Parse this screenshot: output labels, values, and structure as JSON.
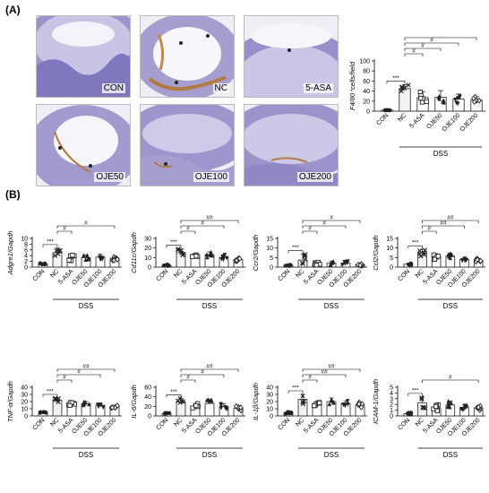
{
  "panels": {
    "a": "(A)",
    "b": "(B)"
  },
  "micrographs": [
    {
      "label": "CON"
    },
    {
      "label": "NC"
    },
    {
      "label": "5-ASA"
    },
    {
      "label": "OJE50"
    },
    {
      "label": "OJE100"
    },
    {
      "label": "OJE200"
    }
  ],
  "colors": {
    "bar_fill": "#ffffff",
    "bar_edge": "#222222",
    "point": "#222222",
    "tissue_purple": "#8e86c4",
    "stain_brown": "#b27a3e"
  },
  "chart_data": [
    {
      "type": "bar",
      "ylabel": "F4/80⁺cells/field",
      "yticks": [
        "0",
        "20",
        "40",
        "60",
        "80",
        "100"
      ],
      "ylim": [
        0,
        100
      ],
      "categories": [
        "CON",
        "NC",
        "5-ASA",
        "OJE50",
        "OJE100",
        "OJE200"
      ],
      "values": [
        2,
        45,
        27,
        28,
        24,
        22
      ],
      "errors": [
        1,
        8,
        12,
        13,
        10,
        7
      ],
      "group_label": "DSS",
      "significance": [
        {
          "from": 0,
          "to": 1,
          "label": "***"
        },
        {
          "from": 1,
          "to": 2,
          "label": "#"
        },
        {
          "from": 1,
          "to": 3,
          "label": "#"
        },
        {
          "from": 1,
          "to": 4,
          "label": "#"
        },
        {
          "from": 1,
          "to": 5,
          "label": "##"
        }
      ]
    },
    {
      "type": "bar",
      "ylabel": "Adgre1/Gapdh",
      "yticks": [
        "0",
        "2",
        "4",
        "6",
        "8",
        "10"
      ],
      "ylim": [
        0,
        10
      ],
      "categories": [
        "CON",
        "NC",
        "5-ASA",
        "OJE50",
        "OJE100",
        "OJE200"
      ],
      "values": [
        1.1,
        5.0,
        3.2,
        3.3,
        3.5,
        3.1
      ],
      "errors": [
        0.4,
        1.6,
        1.0,
        0.9,
        1.0,
        0.8
      ],
      "group_label": "DSS",
      "significance": [
        {
          "from": 0,
          "to": 1,
          "label": "***"
        },
        {
          "from": 1,
          "to": 2,
          "label": "#"
        },
        {
          "from": 1,
          "to": 5,
          "label": "#"
        }
      ]
    },
    {
      "type": "bar",
      "ylabel": "Cd11c/Gapdh",
      "yticks": [
        "0",
        "10",
        "20",
        "30"
      ],
      "ylim": [
        0,
        30
      ],
      "categories": [
        "CON",
        "NC",
        "5-ASA",
        "OJE50",
        "OJE100",
        "OJE200"
      ],
      "values": [
        2,
        15,
        11,
        13,
        10,
        8
      ],
      "errors": [
        0.8,
        4,
        3,
        3,
        3,
        2
      ],
      "group_label": "DSS",
      "significance": [
        {
          "from": 0,
          "to": 1,
          "label": "***"
        },
        {
          "from": 1,
          "to": 2,
          "label": "#"
        },
        {
          "from": 1,
          "to": 4,
          "label": "#"
        },
        {
          "from": 1,
          "to": 5,
          "label": "##"
        }
      ]
    },
    {
      "type": "bar",
      "ylabel": "Ccr2/Gapdh",
      "yticks": [
        "0",
        "5",
        "10",
        "15"
      ],
      "ylim": [
        0,
        15
      ],
      "categories": [
        "CON",
        "NC",
        "5-ASA",
        "OJE50",
        "OJE100",
        "OJE200"
      ],
      "values": [
        1,
        3.7,
        1.8,
        2.0,
        2.0,
        1.4
      ],
      "errors": [
        0.4,
        3.0,
        0.8,
        1.0,
        1.0,
        0.8
      ],
      "group_label": "DSS",
      "significance": [
        {
          "from": 0,
          "to": 1,
          "label": "***"
        },
        {
          "from": 1,
          "to": 2,
          "label": "#"
        },
        {
          "from": 1,
          "to": 4,
          "label": "#"
        },
        {
          "from": 1,
          "to": 5,
          "label": "#"
        }
      ]
    },
    {
      "type": "bar",
      "ylabel": "Ccl2/Gapdh",
      "yticks": [
        "0",
        "5",
        "10",
        "15"
      ],
      "ylim": [
        0,
        15
      ],
      "categories": [
        "CON",
        "NC",
        "5-ASA",
        "OJE50",
        "OJE100",
        "OJE200"
      ],
      "values": [
        1.5,
        7.5,
        5.5,
        5.8,
        4.0,
        3.5
      ],
      "errors": [
        0.5,
        1.8,
        1.5,
        1.5,
        1.0,
        1.0
      ],
      "group_label": "DSS",
      "significance": [
        {
          "from": 0,
          "to": 1,
          "label": "***"
        },
        {
          "from": 1,
          "to": 2,
          "label": "#"
        },
        {
          "from": 1,
          "to": 4,
          "label": "##"
        },
        {
          "from": 1,
          "to": 5,
          "label": "##"
        }
      ]
    },
    {
      "type": "bar",
      "ylabel": "TNF-α/Gapdh",
      "yticks": [
        "0",
        "10",
        "20",
        "30",
        "40"
      ],
      "ylim": [
        0,
        40
      ],
      "categories": [
        "CON",
        "NC",
        "5-ASA",
        "OJE50",
        "OJE100",
        "OJE200"
      ],
      "values": [
        5,
        22,
        17,
        17,
        15,
        13
      ],
      "errors": [
        1,
        3,
        3,
        3,
        3,
        2
      ],
      "group_label": "DSS",
      "significance": [
        {
          "from": 0,
          "to": 1,
          "label": "***"
        },
        {
          "from": 1,
          "to": 2,
          "label": "#"
        },
        {
          "from": 1,
          "to": 4,
          "label": "#"
        },
        {
          "from": 1,
          "to": 5,
          "label": "##"
        }
      ]
    },
    {
      "type": "bar",
      "ylabel": "IL-6/Gapdh",
      "yticks": [
        "0",
        "20",
        "40",
        "60"
      ],
      "ylim": [
        0,
        60
      ],
      "categories": [
        "CON",
        "NC",
        "5-ASA",
        "OJE50",
        "OJE100",
        "OJE200"
      ],
      "values": [
        5,
        29,
        20,
        26,
        20,
        16
      ],
      "errors": [
        1,
        8,
        6,
        8,
        6,
        5
      ],
      "group_label": "DSS",
      "significance": [
        {
          "from": 0,
          "to": 1,
          "label": "***"
        },
        {
          "from": 1,
          "to": 2,
          "label": "#"
        },
        {
          "from": 1,
          "to": 4,
          "label": "#"
        },
        {
          "from": 1,
          "to": 5,
          "label": "##"
        }
      ]
    },
    {
      "type": "bar",
      "ylabel": "IL-1β/Gapdh",
      "yticks": [
        "0",
        "10",
        "20",
        "30",
        "40"
      ],
      "ylim": [
        0,
        40
      ],
      "categories": [
        "CON",
        "NC",
        "5-ASA",
        "OJE50",
        "OJE100",
        "OJE200"
      ],
      "values": [
        5,
        23,
        17,
        20,
        17,
        15
      ],
      "errors": [
        2,
        7,
        4,
        5,
        4,
        4
      ],
      "group_label": "DSS",
      "significance": [
        {
          "from": 0,
          "to": 1,
          "label": "***"
        },
        {
          "from": 1,
          "to": 2,
          "label": "#"
        },
        {
          "from": 1,
          "to": 4,
          "label": "##"
        },
        {
          "from": 1,
          "to": 5,
          "label": "##"
        }
      ]
    },
    {
      "type": "bar",
      "ylabel": "ICAM-1/Gapdh",
      "yticks": [
        "0",
        "1",
        "2",
        "3",
        "4",
        "5"
      ],
      "ylim": [
        0,
        5
      ],
      "categories": [
        "CON",
        "NC",
        "5-ASA",
        "OJE50",
        "OJE100",
        "OJE200"
      ],
      "values": [
        0.4,
        2.3,
        1.4,
        1.9,
        1.5,
        1.4
      ],
      "errors": [
        0.2,
        1.0,
        0.6,
        0.7,
        0.5,
        0.4
      ],
      "group_label": "DSS",
      "significance": [
        {
          "from": 0,
          "to": 1,
          "label": "***"
        },
        {
          "from": 1,
          "to": 5,
          "label": "#"
        }
      ]
    }
  ]
}
